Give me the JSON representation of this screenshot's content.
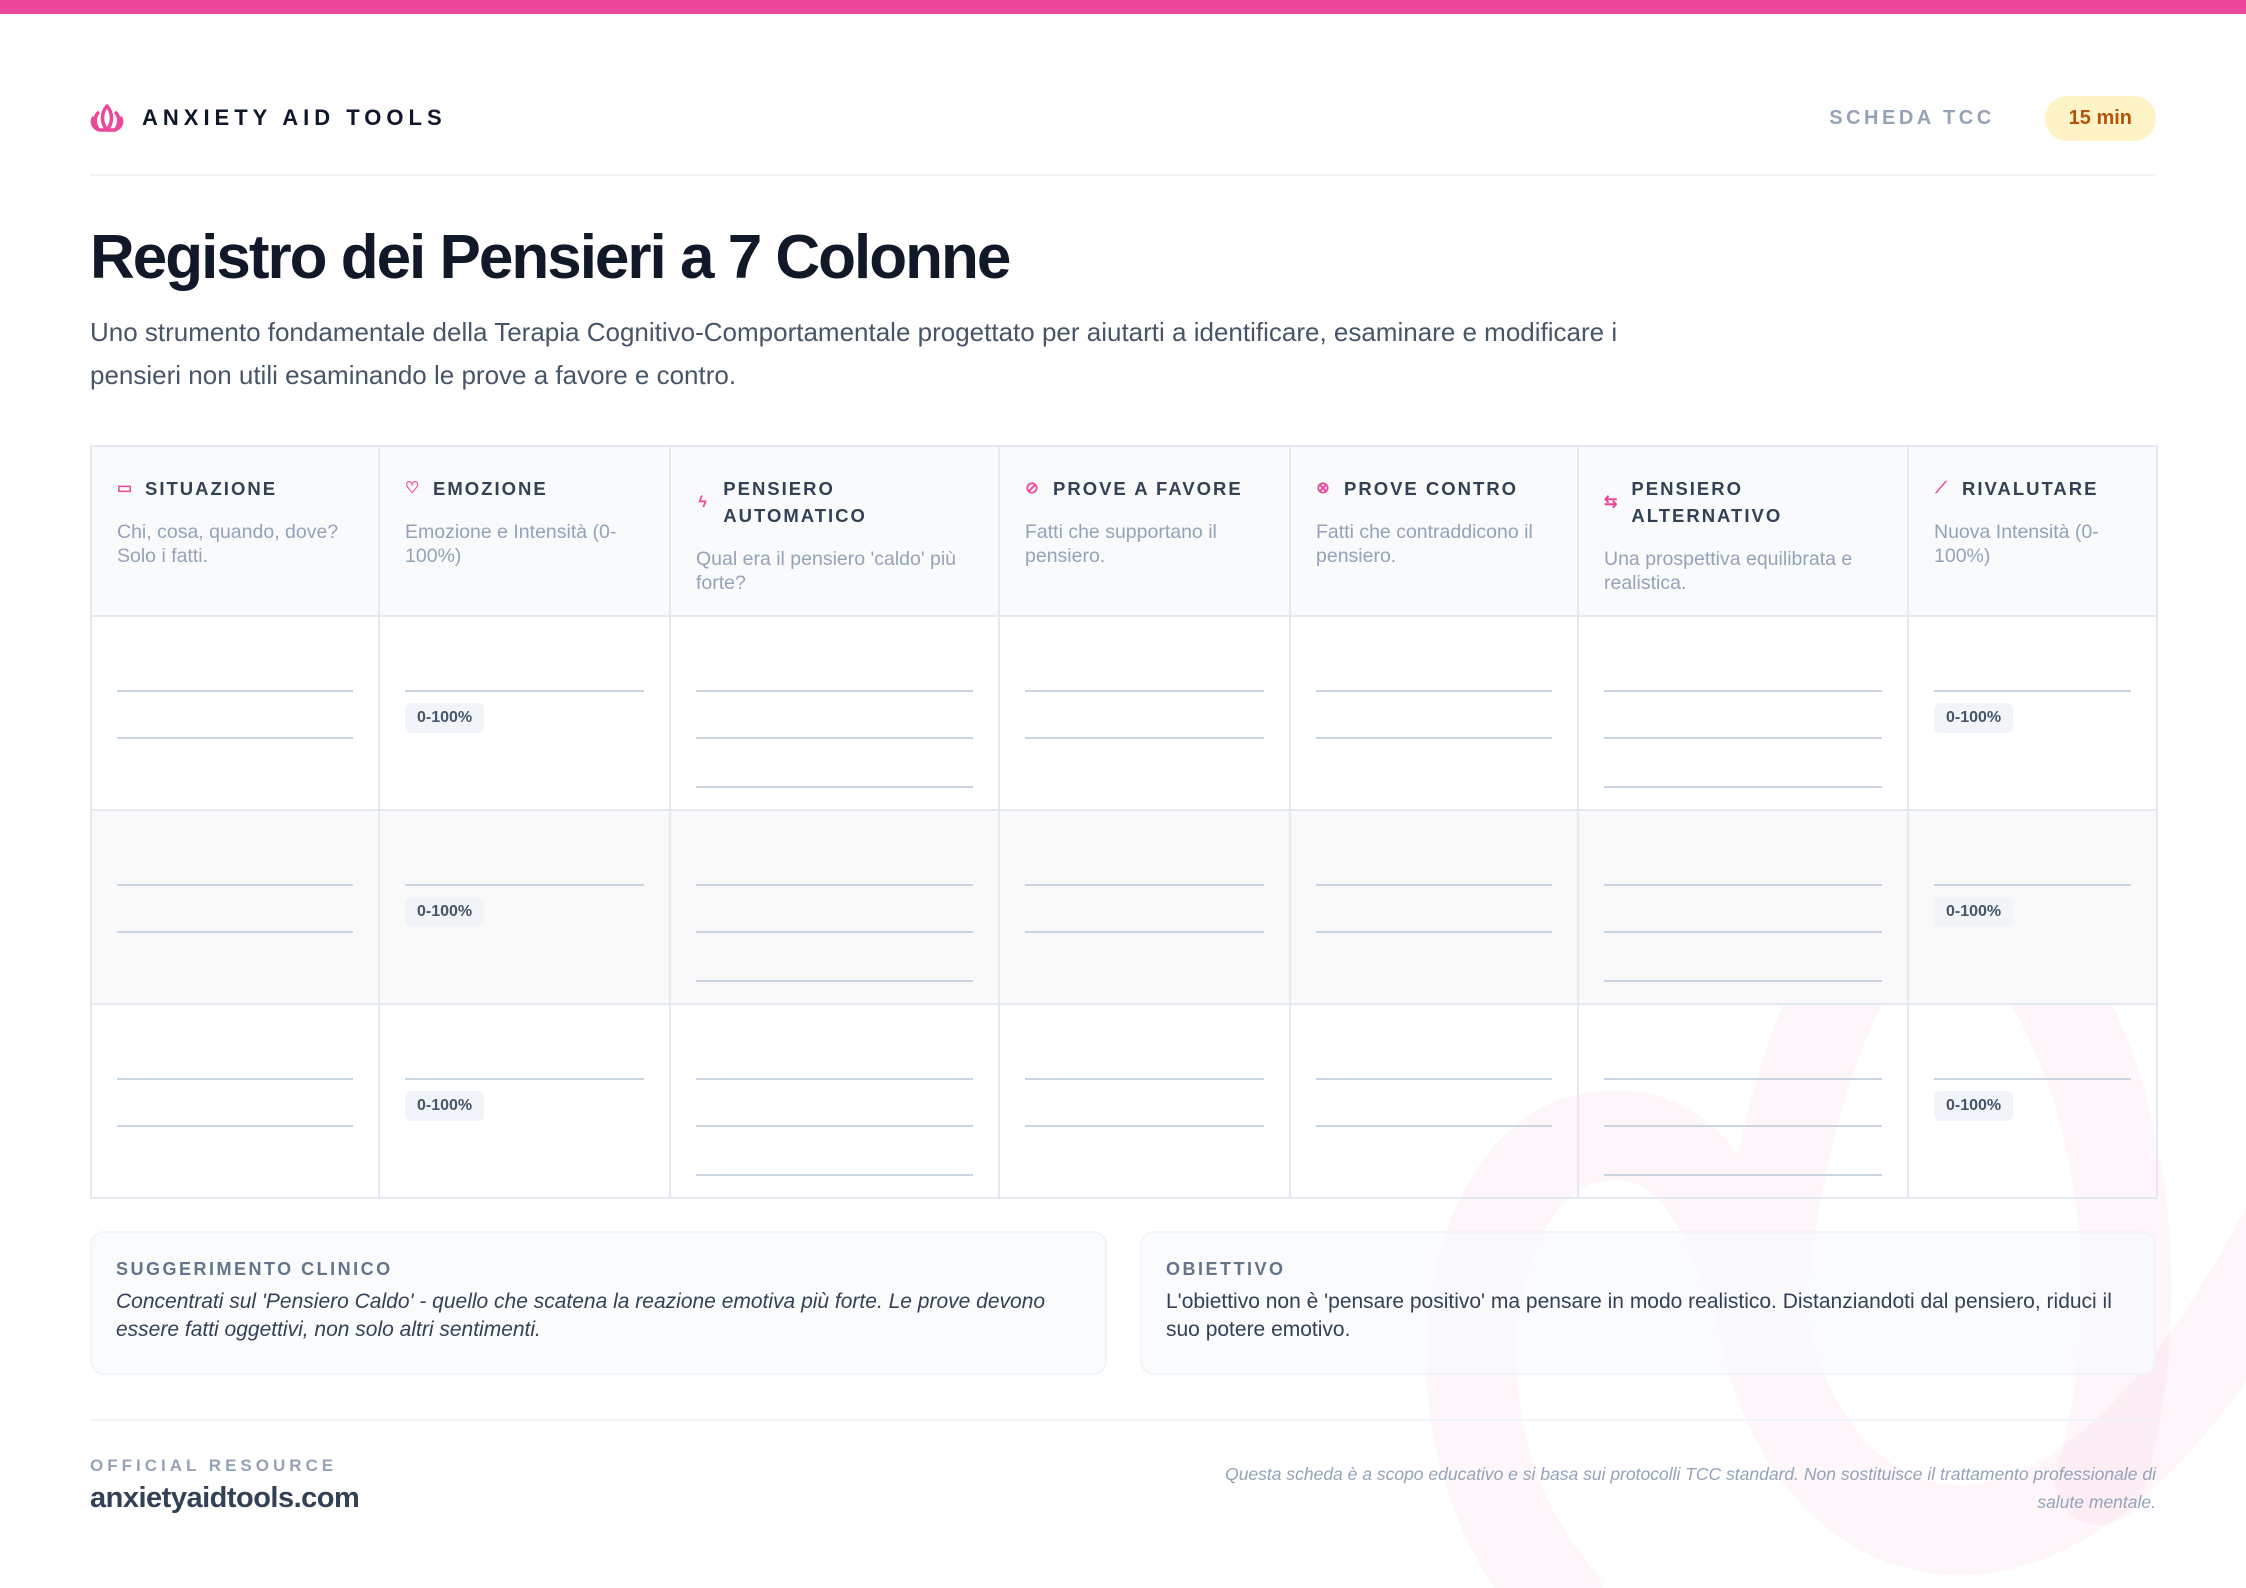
{
  "header": {
    "brand": "ANXIETY AID TOOLS",
    "category": "SCHEDA TCC",
    "duration": "15 min",
    "logo_icon": "lotus-icon"
  },
  "title": "Registro dei Pensieri a 7 Colonne",
  "subtitle": "Uno strumento fondamentale della Terapia Cognitivo-Comportamentale progettato per aiutarti a identificare, esaminare e modificare i pensieri non utili esaminando le prove a favore e contro.",
  "columns": [
    {
      "title": "SITUAZIONE",
      "desc": "Chi, cosa, quando, dove? Solo i fatti.",
      "icon": "calendar-icon",
      "glyph": "▭",
      "kind": "lines2"
    },
    {
      "title": "EMOZIONE",
      "desc": "Emozione e Intensità (0-100%)",
      "icon": "heart-icon",
      "glyph": "♡",
      "kind": "badge"
    },
    {
      "title": "PENSIERO AUTOMATICO",
      "desc": "Qual era il pensiero 'caldo' più forte?",
      "icon": "lightning-icon",
      "glyph": "ϟ",
      "kind": "lines3"
    },
    {
      "title": "PROVE A FAVORE",
      "desc": "Fatti che supportano il pensiero.",
      "icon": "check-circle-icon",
      "glyph": "⊘",
      "kind": "lines2"
    },
    {
      "title": "PROVE CONTRO",
      "desc": "Fatti che contraddicono il pensiero.",
      "icon": "x-circle-icon",
      "glyph": "⊗",
      "kind": "lines2"
    },
    {
      "title": "PENSIERO ALTERNATIVO",
      "desc": "Una prospettiva equilibrata e realistica.",
      "icon": "swap-arrows-icon",
      "glyph": "⇆",
      "kind": "lines3"
    },
    {
      "title": "RIVALUTARE",
      "desc": "Nuova Intensità (0-100%)",
      "icon": "chart-line-icon",
      "glyph": "⟋",
      "kind": "badge"
    }
  ],
  "row_count": 3,
  "intensity_badge": "0-100%",
  "tip": {
    "title": "SUGGERIMENTO CLINICO",
    "body": "Concentrati sul 'Pensiero Caldo' - quello che scatena la reazione emotiva più forte. Le prove devono essere fatti oggettivi, non solo altri sentimenti."
  },
  "goal": {
    "title": "OBIETTIVO",
    "body": "L'obiettivo non è 'pensare positivo' ma pensare in modo realistico. Distanziandoti dal pensiero, riduci il suo potere emotivo."
  },
  "footer": {
    "label": "OFFICIAL RESOURCE",
    "domain": "anxietyaidtools.com",
    "disclaimer": "Questa scheda è a scopo educativo e si basa sui protocolli TCC standard. Non sostituisce il trattamento professionale di salute mentale."
  },
  "colors": {
    "accent": "#ec4899",
    "badge_bg": "#fef3c7",
    "badge_text": "#b45309"
  }
}
